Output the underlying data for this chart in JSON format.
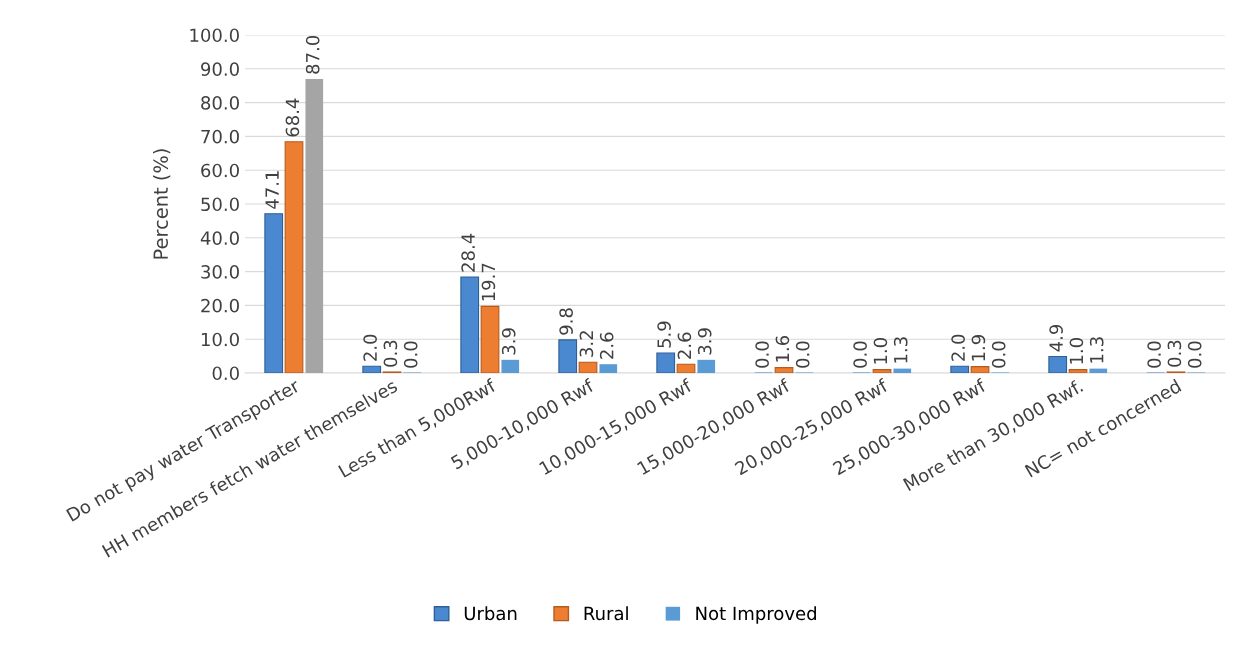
{
  "chart_data": {
    "type": "bar",
    "ylabel": "Percent (%)",
    "categories": [
      "Do not pay water Transporter",
      "HH members fetch water themselves",
      "Less than 5,000Rwf",
      "5,000-10,000 Rwf",
      "10,000-15,000 Rwf",
      "15,000-20,000 Rwf",
      "20,000-25,000 Rwf",
      "25,000-30,000 Rwf",
      "More than 30,000 Rwf.",
      "NC= not concerned"
    ],
    "series": [
      {
        "name": "Urban",
        "color": "#4a89cf",
        "values": [
          47.1,
          2.0,
          28.4,
          9.8,
          5.9,
          0.0,
          0.0,
          2.0,
          4.9,
          0.0
        ],
        "value_labels": [
          "47.1",
          "2.0",
          "28.4",
          "9.8",
          "5.9",
          "0.0",
          "0.0",
          "2.0",
          "4.9",
          "0.0"
        ]
      },
      {
        "name": "Rural",
        "color": "#ed7d31",
        "values": [
          68.4,
          0.3,
          19.7,
          3.2,
          2.6,
          1.6,
          1.0,
          1.9,
          1.0,
          0.3
        ],
        "value_labels": [
          "68.4",
          "0.3",
          "19.7",
          "3.2",
          "2.6",
          "1.6",
          "1.0",
          "1.9",
          "1.0",
          "0.3"
        ]
      },
      {
        "name": "Not Improved",
        "color": "#5b9bd5",
        "colors": [
          "#a5a5a5",
          "#5b9bd5",
          "#5b9bd5",
          "#5b9bd5",
          "#5b9bd5",
          "#5b9bd5",
          "#5b9bd5",
          "#5b9bd5",
          "#5b9bd5",
          "#5b9bd5"
        ],
        "values": [
          87.0,
          0.0,
          3.9,
          2.6,
          3.9,
          0.0,
          1.3,
          0.0,
          1.3,
          0.0
        ],
        "value_labels": [
          "87.0",
          "0.0",
          "3.9",
          "2.6",
          "3.9",
          "0.0",
          "1.3",
          "0.0",
          "1.3",
          "0.0"
        ]
      }
    ],
    "ylim": [
      0,
      100
    ],
    "yticks": [
      {
        "value": 0,
        "label": "0.0"
      },
      {
        "value": 10,
        "label": "10.0"
      },
      {
        "value": 20,
        "label": "20.0"
      },
      {
        "value": 30,
        "label": "30.0"
      },
      {
        "value": 40,
        "label": "40.0"
      },
      {
        "value": 50,
        "label": "50.0"
      },
      {
        "value": 60,
        "label": "60.0"
      },
      {
        "value": 70,
        "label": "70.0"
      },
      {
        "value": 80,
        "label": "80.0"
      },
      {
        "value": 90,
        "label": "90.0"
      },
      {
        "value": 100,
        "label": "100.0"
      }
    ],
    "grid": "y",
    "legend": "bottom"
  }
}
